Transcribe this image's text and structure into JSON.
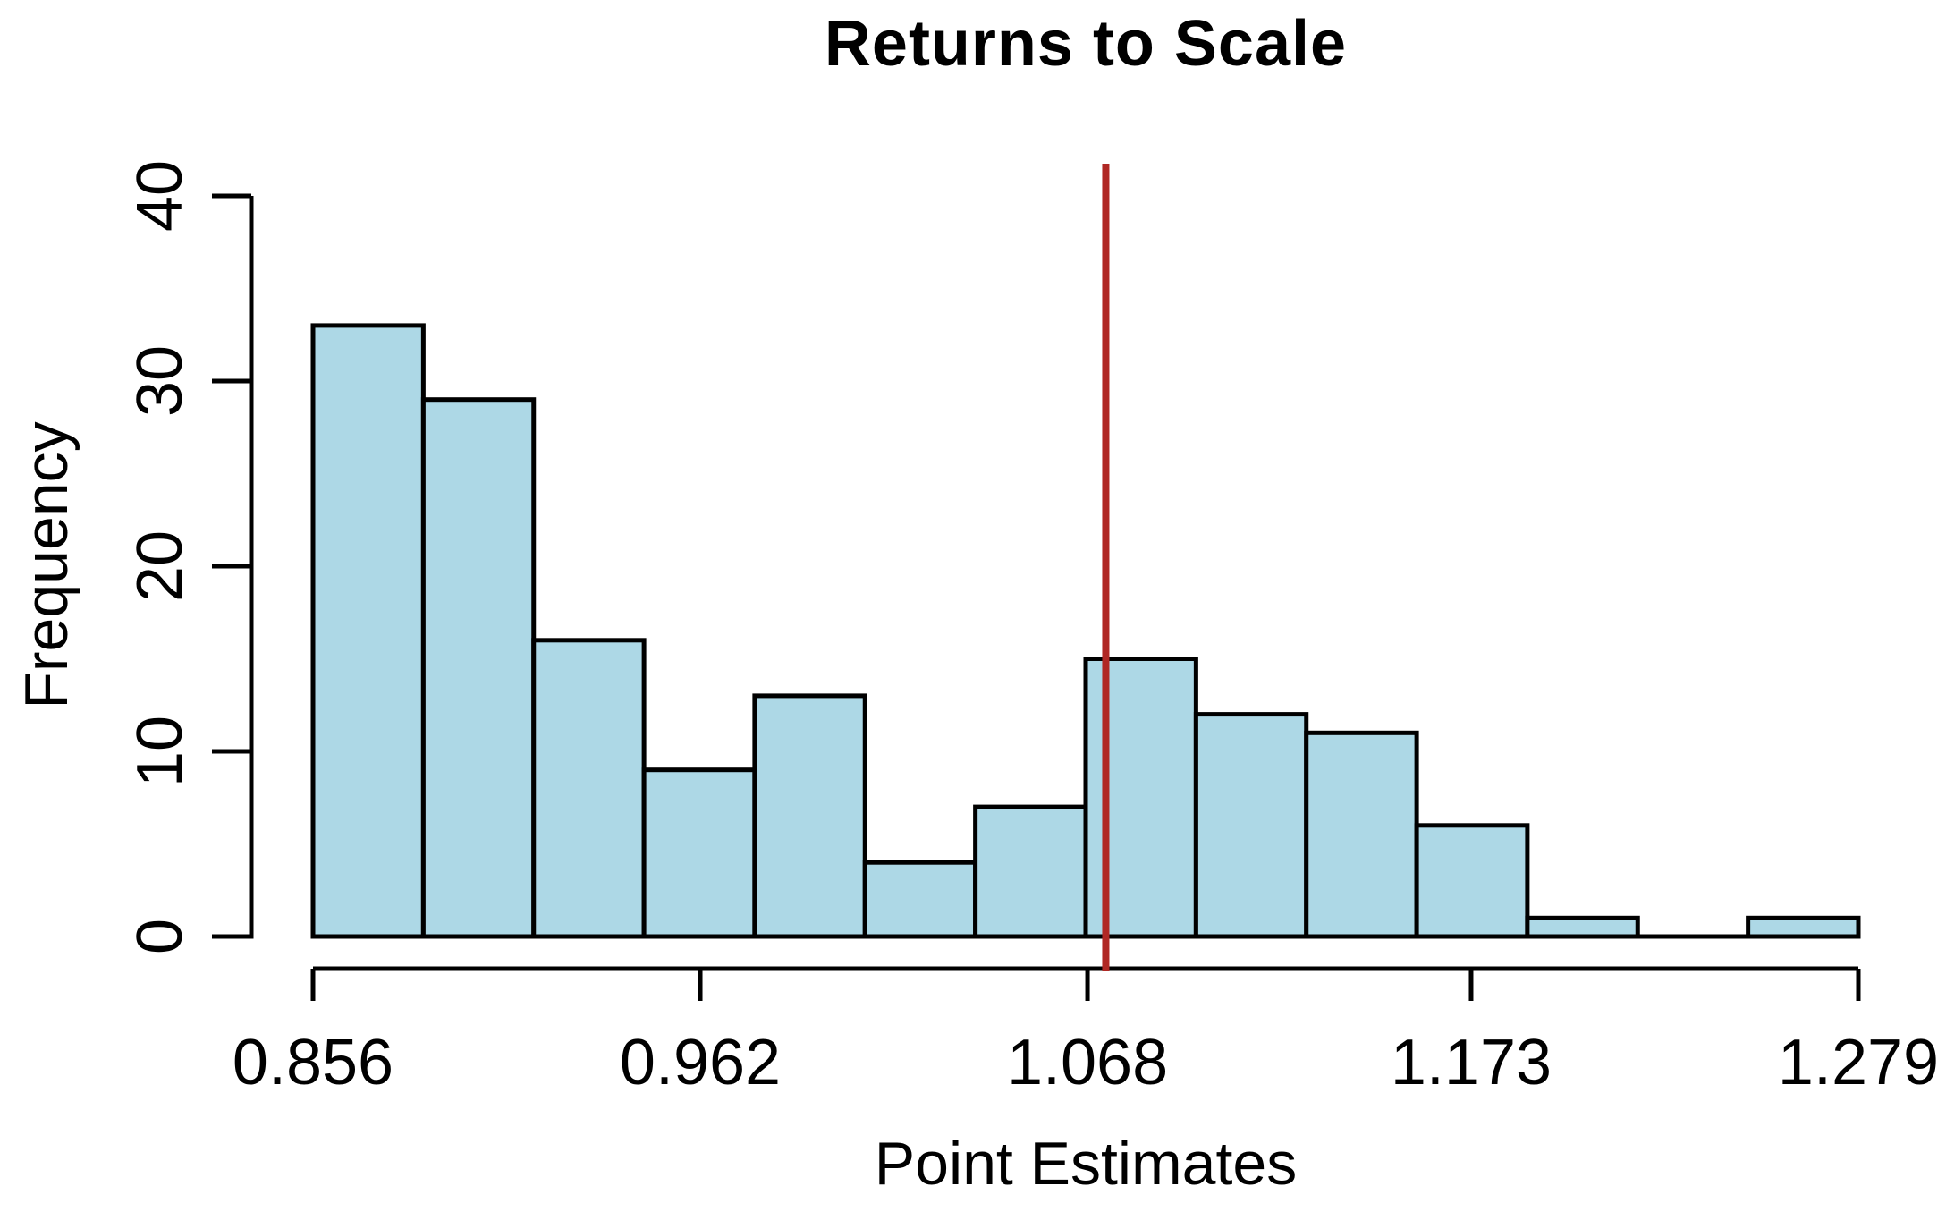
{
  "figure": {
    "background": "#ffffff"
  },
  "chart_data": {
    "type": "bar",
    "subtype": "histogram",
    "title": "Returns to Scale",
    "xlabel": "Point Estimates",
    "ylabel": "Frequency",
    "xlim": [
      0.856,
      1.279
    ],
    "ylim": [
      0,
      40
    ],
    "x_tick_values": [
      0.856,
      0.962,
      1.068,
      1.173,
      1.279
    ],
    "x_tick_labels": [
      "0.856",
      "0.962",
      "1.068",
      "1.173",
      "1.279"
    ],
    "y_tick_values": [
      0,
      10,
      20,
      30,
      40
    ],
    "y_tick_labels": [
      "0",
      "10",
      "20",
      "30",
      "40"
    ],
    "bin_edges": [
      0.856,
      0.8862,
      0.9164,
      0.9466,
      0.9769,
      1.0071,
      1.0373,
      1.0675,
      1.0977,
      1.1279,
      1.1581,
      1.1884,
      1.2186,
      1.2488,
      1.279
    ],
    "counts": [
      33,
      29,
      16,
      9,
      13,
      4,
      7,
      15,
      12,
      11,
      6,
      1,
      0,
      1
    ],
    "reference_line": {
      "x": 1.073,
      "color": "#B02824"
    },
    "bar_fill": "#ADD8E6",
    "bar_border": "#000000",
    "axis_color": "#000000",
    "grid": false,
    "legend": null
  }
}
